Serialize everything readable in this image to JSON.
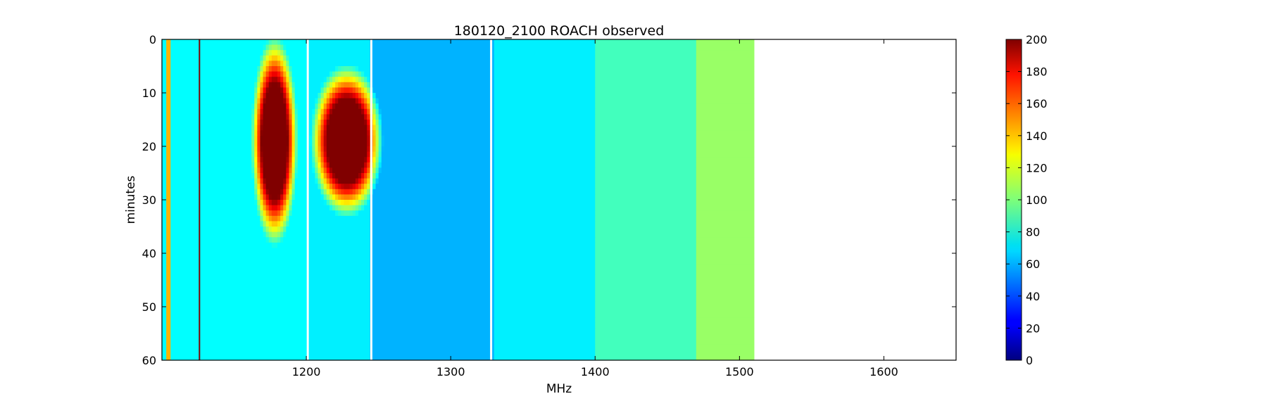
{
  "chart_data": {
    "type": "heatmap",
    "title": "180120_2100 ROACH observed",
    "xlabel": "MHz",
    "ylabel": "minutes",
    "xlim": [
      1100,
      1650
    ],
    "ylim": [
      60,
      0
    ],
    "x_ticks": [
      "1200",
      "1300",
      "1400",
      "1500",
      "1600"
    ],
    "x_tick_values": [
      1200,
      1300,
      1400,
      1500,
      1600
    ],
    "y_ticks": [
      "0",
      "10",
      "20",
      "30",
      "40",
      "50",
      "60"
    ],
    "y_tick_values": [
      0,
      10,
      20,
      30,
      40,
      50,
      60
    ],
    "data_x_range": [
      1100,
      1510
    ],
    "colorbar": {
      "min": 0,
      "max": 200,
      "ticks": [
        "0",
        "20",
        "40",
        "60",
        "80",
        "100",
        "120",
        "140",
        "160",
        "180",
        "200"
      ],
      "tick_values": [
        0,
        20,
        40,
        60,
        80,
        100,
        120,
        140,
        160,
        180,
        200
      ],
      "colormap": "jet"
    },
    "features": [
      {
        "kind": "baseline-band",
        "x_range": [
          1100,
          1200
        ],
        "value": 75
      },
      {
        "kind": "baseline-band",
        "x_range": [
          1200,
          1245
        ],
        "value": 72
      },
      {
        "kind": "baseline-band",
        "x_range": [
          1245,
          1330
        ],
        "value": 60
      },
      {
        "kind": "baseline-band",
        "x_range": [
          1330,
          1400
        ],
        "value": 72
      },
      {
        "kind": "baseline-band",
        "x_range": [
          1400,
          1470
        ],
        "value": 88
      },
      {
        "kind": "baseline-band",
        "x_range": [
          1470,
          1510
        ],
        "value": 105
      },
      {
        "kind": "strong-edge",
        "x_range": [
          1103,
          1106
        ],
        "value": 140
      },
      {
        "kind": "persistent-line",
        "x": 1126,
        "value": 200
      },
      {
        "kind": "burst",
        "x_center": 1178,
        "y_center": 19,
        "x_halfwidth": 9,
        "y_halfwidth": 11,
        "peak": 200
      },
      {
        "kind": "burst",
        "x_center": 1228,
        "y_center": 19,
        "x_halfwidth": 14,
        "y_halfwidth": 8,
        "peak": 200
      },
      {
        "kind": "blank-line",
        "x": 1201
      },
      {
        "kind": "blank-line",
        "x": 1245
      },
      {
        "kind": "blank-line",
        "x": 1328
      }
    ]
  }
}
